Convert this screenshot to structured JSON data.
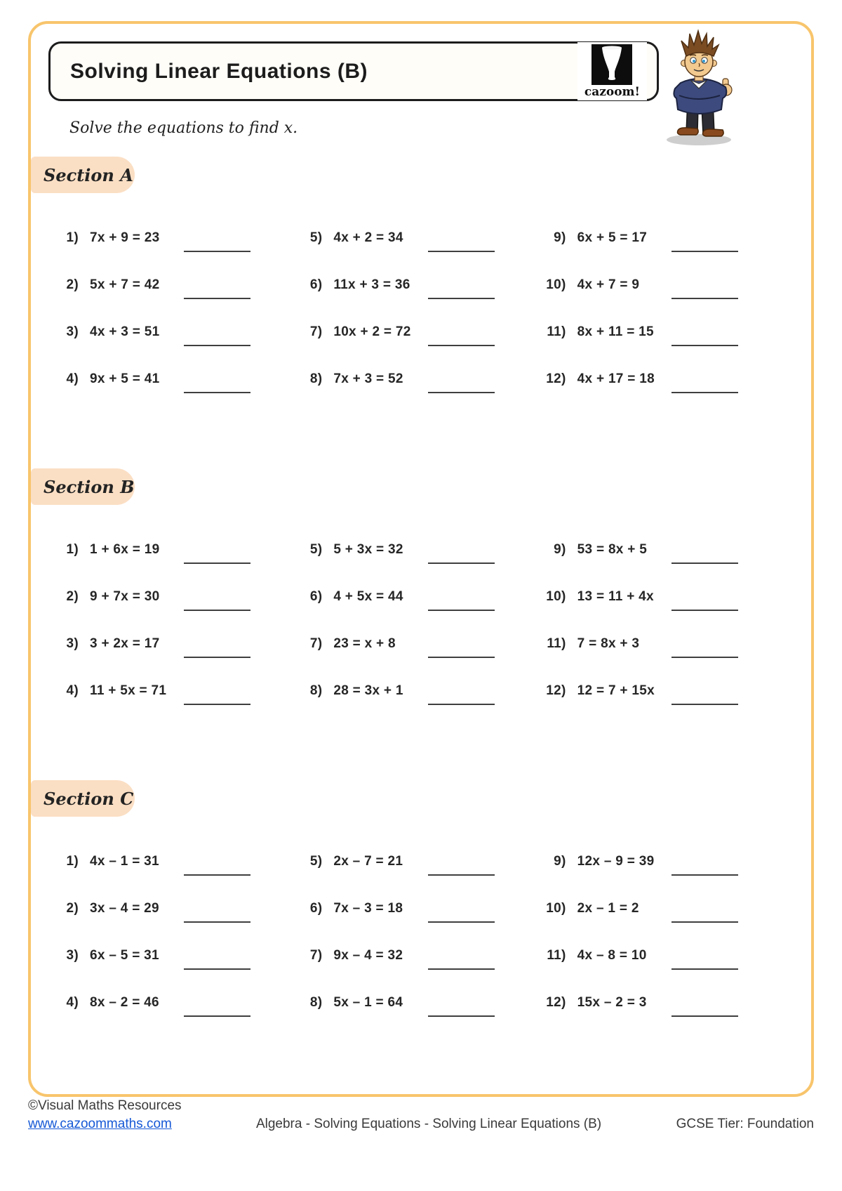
{
  "header": {
    "title": "Solving Linear Equations (B)",
    "logo_text": "cazoom!",
    "instruction": "Solve the equations to find x."
  },
  "sections": [
    {
      "label": "Section A",
      "problems": [
        {
          "n": "1)",
          "eq": "7x + 9 = 23"
        },
        {
          "n": "2)",
          "eq": "5x + 7 = 42"
        },
        {
          "n": "3)",
          "eq": "4x + 3 = 51"
        },
        {
          "n": "4)",
          "eq": "9x + 5 = 41"
        },
        {
          "n": "5)",
          "eq": "4x + 2 = 34"
        },
        {
          "n": "6)",
          "eq": "11x + 3 = 36"
        },
        {
          "n": "7)",
          "eq": "10x + 2 = 72"
        },
        {
          "n": "8)",
          "eq": "7x + 3 = 52"
        },
        {
          "n": "9)",
          "eq": "6x + 5 = 17"
        },
        {
          "n": "10)",
          "eq": "4x + 7 = 9"
        },
        {
          "n": "11)",
          "eq": "8x + 11 = 15"
        },
        {
          "n": "12)",
          "eq": "4x + 17 = 18"
        }
      ]
    },
    {
      "label": "Section B",
      "problems": [
        {
          "n": "1)",
          "eq": "1 + 6x = 19"
        },
        {
          "n": "2)",
          "eq": "9 + 7x = 30"
        },
        {
          "n": "3)",
          "eq": "3 + 2x = 17"
        },
        {
          "n": "4)",
          "eq": "11 + 5x = 71"
        },
        {
          "n": "5)",
          "eq": "5 + 3x = 32"
        },
        {
          "n": "6)",
          "eq": "4 + 5x = 44"
        },
        {
          "n": "7)",
          "eq": "23 = x + 8"
        },
        {
          "n": "8)",
          "eq": "28 = 3x + 1"
        },
        {
          "n": "9)",
          "eq": "53 = 8x + 5"
        },
        {
          "n": "10)",
          "eq": "13 = 11 + 4x"
        },
        {
          "n": "11)",
          "eq": "7 = 8x + 3"
        },
        {
          "n": "12)",
          "eq": "12 = 7 + 15x"
        }
      ]
    },
    {
      "label": "Section C",
      "problems": [
        {
          "n": "1)",
          "eq": "4x – 1 = 31"
        },
        {
          "n": "2)",
          "eq": "3x – 4 = 29"
        },
        {
          "n": "3)",
          "eq": "6x – 5 = 31"
        },
        {
          "n": "4)",
          "eq": "8x – 2 = 46"
        },
        {
          "n": "5)",
          "eq": "2x – 7 = 21"
        },
        {
          "n": "6)",
          "eq": "7x – 3 = 18"
        },
        {
          "n": "7)",
          "eq": "9x – 4 = 32"
        },
        {
          "n": "8)",
          "eq": "5x – 1 = 64"
        },
        {
          "n": "9)",
          "eq": "12x – 9 = 39"
        },
        {
          "n": "10)",
          "eq": "2x – 1 = 2"
        },
        {
          "n": "11)",
          "eq": "4x – 8 = 10"
        },
        {
          "n": "12)",
          "eq": "15x – 2 = 3"
        }
      ]
    }
  ],
  "footer": {
    "copyright": "©Visual Maths Resources",
    "url": "www.cazoommaths.com",
    "center": "Algebra - Solving Equations - Solving Linear Equations (B)",
    "right": "GCSE Tier: Foundation"
  },
  "colors": {
    "border": "#F8C56C",
    "section_bg": "#FBDFC4",
    "link": "#1558D6"
  }
}
